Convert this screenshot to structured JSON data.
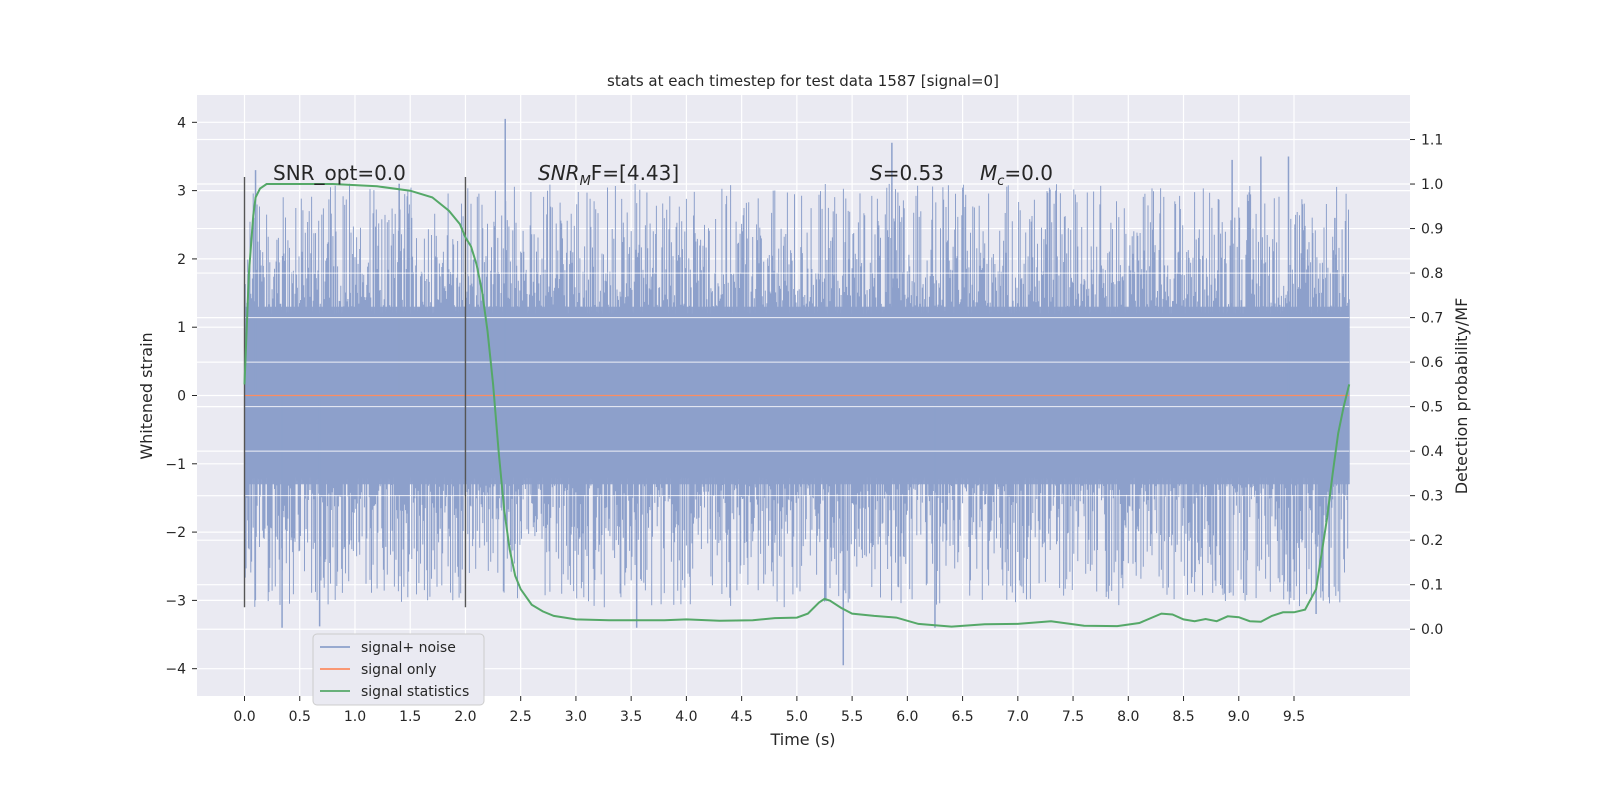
{
  "chart_data": {
    "type": "line",
    "title": "stats at each timestep for test data 1587 [signal=0]",
    "xlabel": "Time (s)",
    "ylabel": "Whitened strain",
    "ylabel_right": "Detection probability/MF",
    "xlim": [
      -0.43,
      10.55
    ],
    "ylim": [
      -4.4,
      4.4
    ],
    "ylim_right": [
      -0.15,
      1.2
    ],
    "x_ticks": [
      "0.0",
      "0.5",
      "1.0",
      "1.5",
      "2.0",
      "2.5",
      "3.0",
      "3.5",
      "4.0",
      "4.5",
      "5.0",
      "5.5",
      "6.0",
      "6.5",
      "7.0",
      "7.5",
      "8.0",
      "8.5",
      "9.0",
      "9.5"
    ],
    "y_ticks": [
      "4",
      "3",
      "2",
      "1",
      "0",
      "−1",
      "−2",
      "−3",
      "−4"
    ],
    "y_right_ticks": [
      "1.1",
      "1.0",
      "0.9",
      "0.8",
      "0.7",
      "0.6",
      "0.5",
      "0.4",
      "0.3",
      "0.2",
      "0.1",
      "0.0"
    ],
    "grid": true,
    "legend_position": "lower-left",
    "annotations": {
      "snr_opt": "SNR_opt=0.0",
      "snr_mf_italic": "SNR",
      "snr_mf_sub": "M",
      "snr_mf_rest": "F=[4.43]",
      "s_italic": "S",
      "s_rest": "=0.53",
      "mc_italic": "M",
      "mc_sub": "c",
      "mc_rest": "=0.0"
    },
    "series": [
      {
        "name": "signal+ noise",
        "color": "#8da0cb",
        "x_start": 0.0,
        "x_end": 10.0,
        "band_low": -1.9,
        "band_high": 1.9,
        "spikes": [
          [
            0.1,
            3.3
          ],
          [
            1.4,
            3.1
          ],
          [
            2.36,
            4.05
          ],
          [
            5.86,
            3.7
          ],
          [
            8.94,
            3.45
          ],
          [
            9.2,
            3.5
          ],
          [
            9.45,
            3.5
          ],
          [
            0.34,
            -3.4
          ],
          [
            0.68,
            -3.38
          ],
          [
            3.55,
            -3.4
          ],
          [
            5.42,
            -3.95
          ],
          [
            6.25,
            -3.4
          ],
          [
            9.7,
            -3.2
          ],
          [
            9.87,
            2.6
          ]
        ]
      },
      {
        "name": "signal only",
        "color": "#fc8d62",
        "x": [
          0.0,
          10.0
        ],
        "y": [
          0.0,
          0.0
        ]
      },
      {
        "name": "signal statistics",
        "color": "#55a868",
        "axis": "right",
        "x": [
          0.0,
          0.04,
          0.08,
          0.1,
          0.14,
          0.2,
          0.3,
          0.5,
          0.8,
          1.2,
          1.5,
          1.7,
          1.85,
          1.95,
          2.0,
          2.05,
          2.1,
          2.15,
          2.2,
          2.25,
          2.3,
          2.35,
          2.4,
          2.45,
          2.5,
          2.6,
          2.7,
          2.8,
          3.0,
          3.3,
          3.5,
          3.8,
          4.0,
          4.3,
          4.6,
          4.8,
          5.0,
          5.1,
          5.2,
          5.25,
          5.3,
          5.4,
          5.5,
          5.7,
          5.9,
          6.1,
          6.4,
          6.7,
          7.0,
          7.3,
          7.6,
          7.9,
          8.1,
          8.3,
          8.4,
          8.5,
          8.6,
          8.7,
          8.8,
          8.9,
          9.0,
          9.1,
          9.2,
          9.3,
          9.4,
          9.5,
          9.6,
          9.7,
          9.8,
          9.85,
          9.9,
          9.95,
          10.0
        ],
        "y": [
          0.55,
          0.8,
          0.93,
          0.97,
          0.99,
          1.0,
          1.0,
          1.0,
          1.0,
          0.995,
          0.985,
          0.97,
          0.94,
          0.91,
          0.88,
          0.86,
          0.82,
          0.76,
          0.67,
          0.55,
          0.4,
          0.27,
          0.18,
          0.12,
          0.09,
          0.055,
          0.04,
          0.03,
          0.022,
          0.02,
          0.02,
          0.02,
          0.022,
          0.019,
          0.02,
          0.025,
          0.026,
          0.035,
          0.06,
          0.068,
          0.064,
          0.048,
          0.035,
          0.03,
          0.026,
          0.012,
          0.006,
          0.011,
          0.012,
          0.018,
          0.008,
          0.007,
          0.014,
          0.035,
          0.033,
          0.022,
          0.018,
          0.023,
          0.018,
          0.029,
          0.027,
          0.018,
          0.017,
          0.03,
          0.038,
          0.038,
          0.044,
          0.09,
          0.25,
          0.35,
          0.44,
          0.5,
          0.55
        ]
      }
    ],
    "vlines": [
      {
        "x": 0.0,
        "y_range": [
          -3.1,
          3.2
        ]
      },
      {
        "x": 2.0,
        "y_range": [
          -3.1,
          3.2
        ]
      }
    ]
  }
}
